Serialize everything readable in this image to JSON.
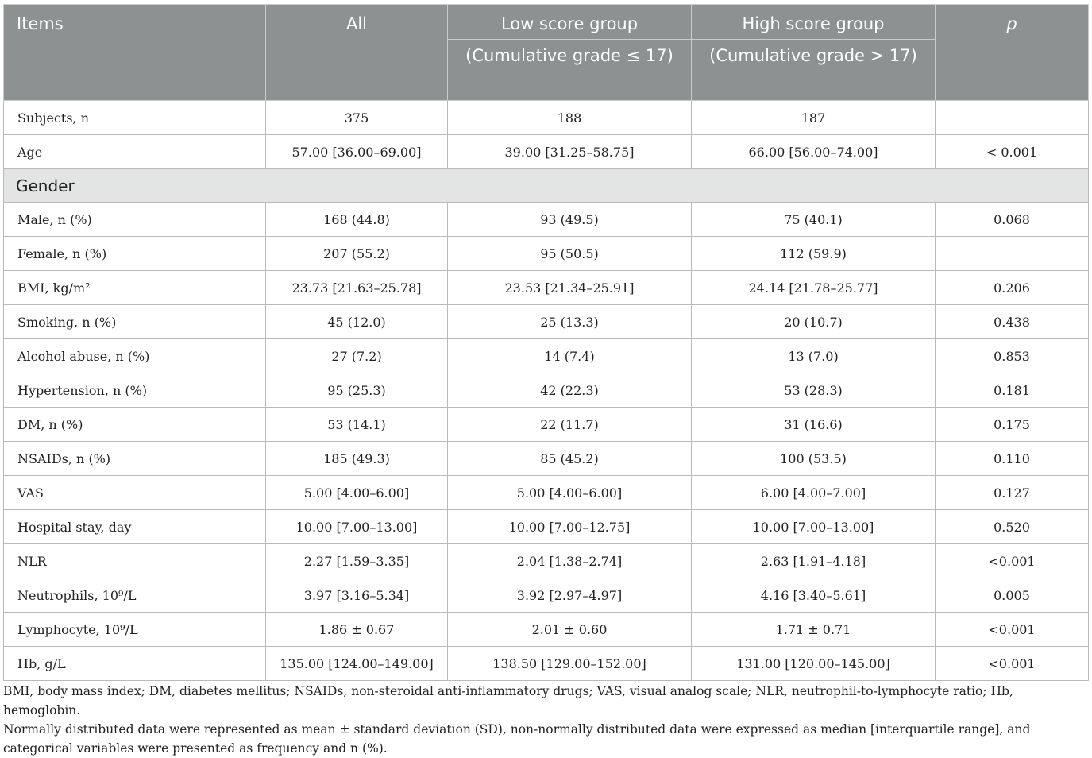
{
  "header": {
    "items": "Items",
    "all": "All",
    "low_group": "Low score group",
    "low_sub": "(Cumulative grade ≤ 17)",
    "high_group": "High score group",
    "high_sub": "(Cumulative grade > 17)",
    "p": "p"
  },
  "rows": [
    {
      "label": "Subjects, n",
      "all": "375",
      "low": "188",
      "high": "187",
      "p": ""
    },
    {
      "label": "Age",
      "all": "57.00 [36.00–69.00]",
      "low": "39.00 [31.25–58.75]",
      "high": "66.00 [56.00–74.00]",
      "p": "< 0.001"
    }
  ],
  "section": "Gender",
  "rows2": [
    {
      "label": "Male, n (%)",
      "all": "168 (44.8)",
      "low": "93 (49.5)",
      "high": "75 (40.1)",
      "p": "0.068"
    },
    {
      "label": "Female, n (%)",
      "all": "207 (55.2)",
      "low": "95 (50.5)",
      "high": "112 (59.9)",
      "p": ""
    },
    {
      "label": "BMI, kg/m²",
      "all": "23.73 [21.63–25.78]",
      "low": "23.53 [21.34–25.91]",
      "high": "24.14 [21.78–25.77]",
      "p": "0.206"
    },
    {
      "label": "Smoking, n (%)",
      "all": "45 (12.0)",
      "low": "25 (13.3)",
      "high": "20 (10.7)",
      "p": "0.438"
    },
    {
      "label": "Alcohol abuse, n (%)",
      "all": "27 (7.2)",
      "low": "14 (7.4)",
      "high": "13 (7.0)",
      "p": "0.853"
    },
    {
      "label": "Hypertension, n (%)",
      "all": "95 (25.3)",
      "low": "42 (22.3)",
      "high": "53 (28.3)",
      "p": "0.181"
    },
    {
      "label": "DM, n (%)",
      "all": "53 (14.1)",
      "low": "22 (11.7)",
      "high": "31 (16.6)",
      "p": "0.175"
    },
    {
      "label": "NSAIDs, n (%)",
      "all": "185 (49.3)",
      "low": "85 (45.2)",
      "high": "100 (53.5)",
      "p": "0.110"
    },
    {
      "label": "VAS",
      "all": "5.00 [4.00–6.00]",
      "low": "5.00 [4.00–6.00]",
      "high": "6.00 [4.00–7.00]",
      "p": "0.127"
    },
    {
      "label": "Hospital stay, day",
      "all": "10.00 [7.00–13.00]",
      "low": "10.00 [7.00–12.75]",
      "high": "10.00 [7.00–13.00]",
      "p": "0.520"
    },
    {
      "label": "NLR",
      "all": "2.27 [1.59–3.35]",
      "low": "2.04 [1.38–2.74]",
      "high": "2.63 [1.91–4.18]",
      "p": "<0.001"
    },
    {
      "label": "Neutrophils, 10⁹/L",
      "all": "3.97 [3.16–5.34]",
      "low": "3.92 [2.97–4.97]",
      "high": "4.16 [3.40–5.61]",
      "p": "0.005"
    },
    {
      "label": "Lymphocyte, 10⁹/L",
      "all": "1.86 ± 0.67",
      "low": "2.01 ± 0.60",
      "high": "1.71 ± 0.71",
      "p": "<0.001"
    },
    {
      "label": "Hb, g/L",
      "all": "135.00 [124.00–149.00]",
      "low": "138.50 [129.00–152.00]",
      "high": "131.00 [120.00–145.00]",
      "p": "<0.001"
    }
  ],
  "footnotes": [
    "BMI, body mass index; DM, diabetes mellitus; NSAIDs, non-steroidal anti-inflammatory drugs; VAS, visual analog scale; NLR, neutrophil-to-lymphocyte ratio; Hb, hemoglobin.",
    "Normally distributed data were represented as mean ± standard deviation (SD), non-normally distributed data were expressed as median [interquartile range], and categorical variables were presented as frequency and n (%)."
  ]
}
